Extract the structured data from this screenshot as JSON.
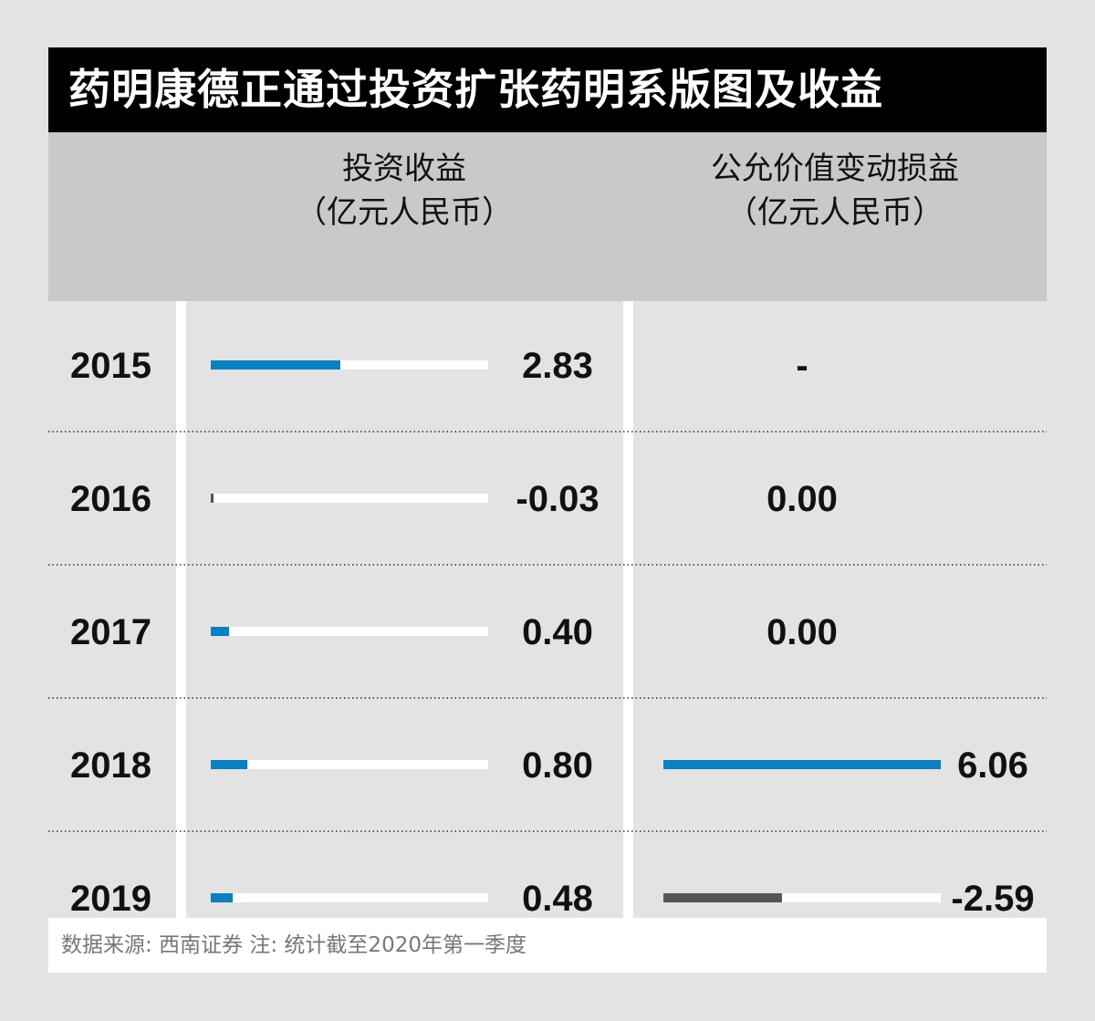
{
  "title": "药明康德正通过投资扩张药明系版图及收益",
  "columns": [
    {
      "name_line1": "投资收益",
      "name_line2": "（亿元人民币）"
    },
    {
      "name_line1": "公允价值变动损益",
      "name_line2": "（亿元人民币）"
    }
  ],
  "source": "数据来源: 西南证券    注: 统计截至2020年第一季度",
  "colors": {
    "positive_bar": "#0a7fc2",
    "negative_bar": "#555555",
    "track": "#ffffff",
    "title_bg": "#000000",
    "header_bg": "#c9c9c9",
    "background": "#e3e3e3"
  },
  "chart_data": {
    "type": "bar",
    "categories": [
      "2015",
      "2016",
      "2017",
      "2018",
      "2019"
    ],
    "series": [
      {
        "name": "投资收益",
        "values": [
          2.83,
          -0.03,
          0.4,
          0.8,
          0.48
        ],
        "labels": [
          "2.83",
          "-0.03",
          "0.40",
          "0.80",
          "0.48"
        ],
        "scale_max": 6.06
      },
      {
        "name": "公允价值变动损益",
        "values": [
          null,
          0.0,
          0.0,
          6.06,
          -2.59
        ],
        "labels": [
          "-",
          "0.00",
          "0.00",
          "6.06",
          "-2.59"
        ],
        "scale_max": 6.06
      }
    ]
  }
}
